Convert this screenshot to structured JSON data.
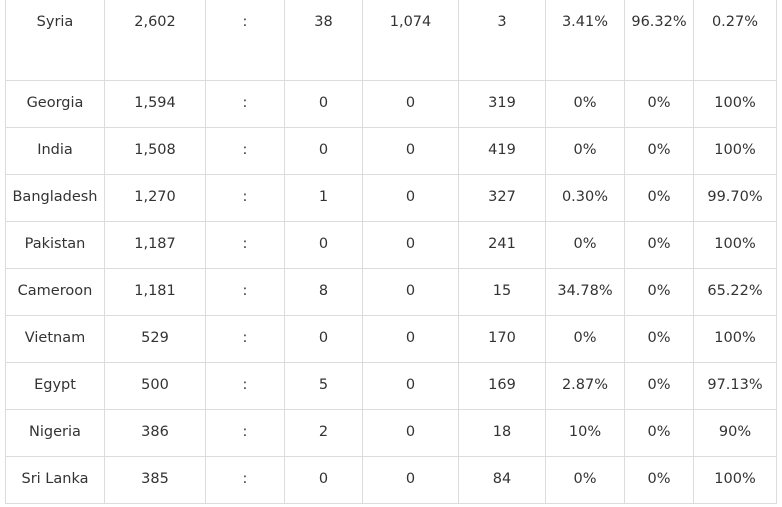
{
  "table": {
    "rows": [
      [
        "Syria",
        "2,602",
        ":",
        "38",
        "1,074",
        "3",
        "3.41%",
        "96.32%",
        "0.27%"
      ],
      [
        "Georgia",
        "1,594",
        ":",
        "0",
        "0",
        "319",
        "0%",
        "0%",
        "100%"
      ],
      [
        "India",
        "1,508",
        ":",
        "0",
        "0",
        "419",
        "0%",
        "0%",
        "100%"
      ],
      [
        "Bangladesh",
        "1,270",
        ":",
        "1",
        "0",
        "327",
        "0.30%",
        "0%",
        "99.70%"
      ],
      [
        "Pakistan",
        "1,187",
        ":",
        "0",
        "0",
        "241",
        "0%",
        "0%",
        "100%"
      ],
      [
        "Cameroon",
        "1,181",
        ":",
        "8",
        "0",
        "15",
        "34.78%",
        "0%",
        "65.22%"
      ],
      [
        "Vietnam",
        "529",
        ":",
        "0",
        "0",
        "170",
        "0%",
        "0%",
        "100%"
      ],
      [
        "Egypt",
        "500",
        ":",
        "5",
        "0",
        "169",
        "2.87%",
        "0%",
        "97.13%"
      ],
      [
        "Nigeria",
        "386",
        ":",
        "2",
        "0",
        "18",
        "10%",
        "0%",
        "90%"
      ],
      [
        "Sri Lanka",
        "385",
        ":",
        "0",
        "0",
        "84",
        "0%",
        "0%",
        "100%"
      ]
    ]
  }
}
